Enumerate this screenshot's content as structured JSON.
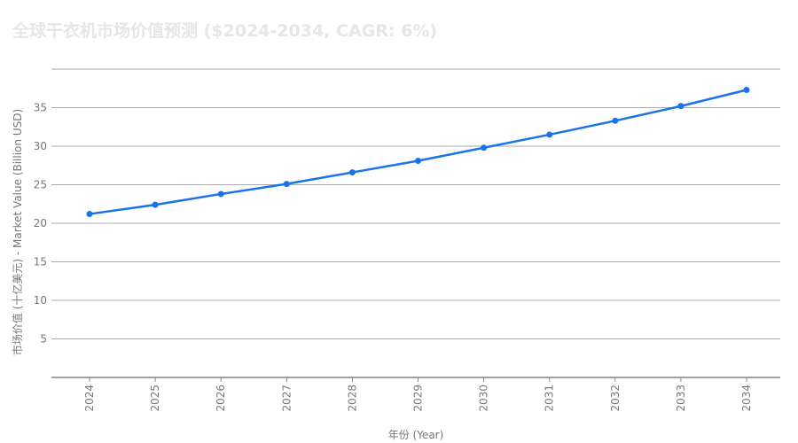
{
  "chart_data": {
    "type": "line",
    "title": "全球干衣机市场价值预测 ($2024-2034, CAGR: 6%)",
    "xlabel": "年份 (Year)",
    "ylabel": "市场价值 (十亿美元) - Market Value (Billion USD)",
    "categories": [
      "2024",
      "2025",
      "2026",
      "2027",
      "2028",
      "2029",
      "2030",
      "2031",
      "2032",
      "2033",
      "2034"
    ],
    "series": [
      {
        "values": [
          21.2,
          22.4,
          23.8,
          25.1,
          26.6,
          28.1,
          29.8,
          31.5,
          33.3,
          35.2,
          37.3
        ],
        "color": "#1a73e8"
      }
    ],
    "ylim": [
      0,
      40
    ],
    "yticks": [
      5,
      10,
      15,
      20,
      25,
      30,
      35
    ],
    "grid": true,
    "legend": "none"
  }
}
